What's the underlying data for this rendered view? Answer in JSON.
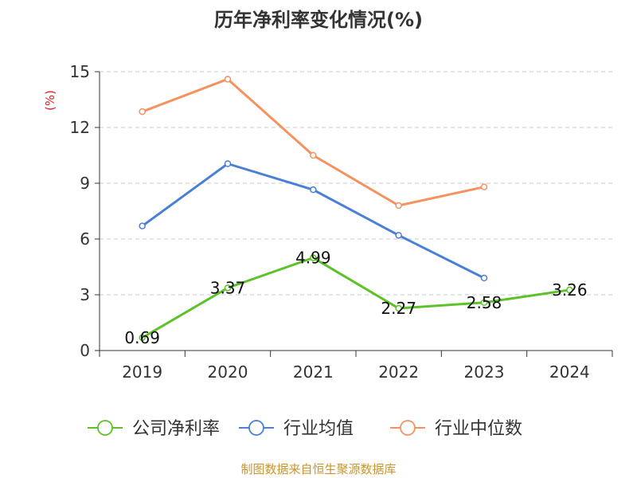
{
  "chart_data": {
    "type": "line",
    "title": "历年净利率变化情况(%)",
    "ylabel": "(%)",
    "xlabel": "",
    "categories": [
      "2019",
      "2020",
      "2021",
      "2022",
      "2023",
      "2024"
    ],
    "ylim": [
      0,
      15
    ],
    "yticks": [
      0,
      3,
      6,
      9,
      12,
      15
    ],
    "grid": true,
    "legend_position": "bottom",
    "series": [
      {
        "name": "公司净利率",
        "color": "#5cc228",
        "values": [
          0.69,
          3.37,
          4.99,
          2.27,
          2.58,
          3.26
        ],
        "labels": [
          "0.69",
          "3.37",
          "4.99",
          "2.27",
          "2.58",
          "3.26"
        ]
      },
      {
        "name": "行业均值",
        "color": "#4a7fd8",
        "values": [
          6.7,
          10.05,
          8.65,
          6.2,
          3.9,
          null
        ]
      },
      {
        "name": "行业中位数",
        "color": "#f5925f",
        "values": [
          12.85,
          14.6,
          10.5,
          7.8,
          8.8,
          null
        ]
      }
    ]
  },
  "footer": {
    "source": "制图数据来自恒生聚源数据库"
  }
}
